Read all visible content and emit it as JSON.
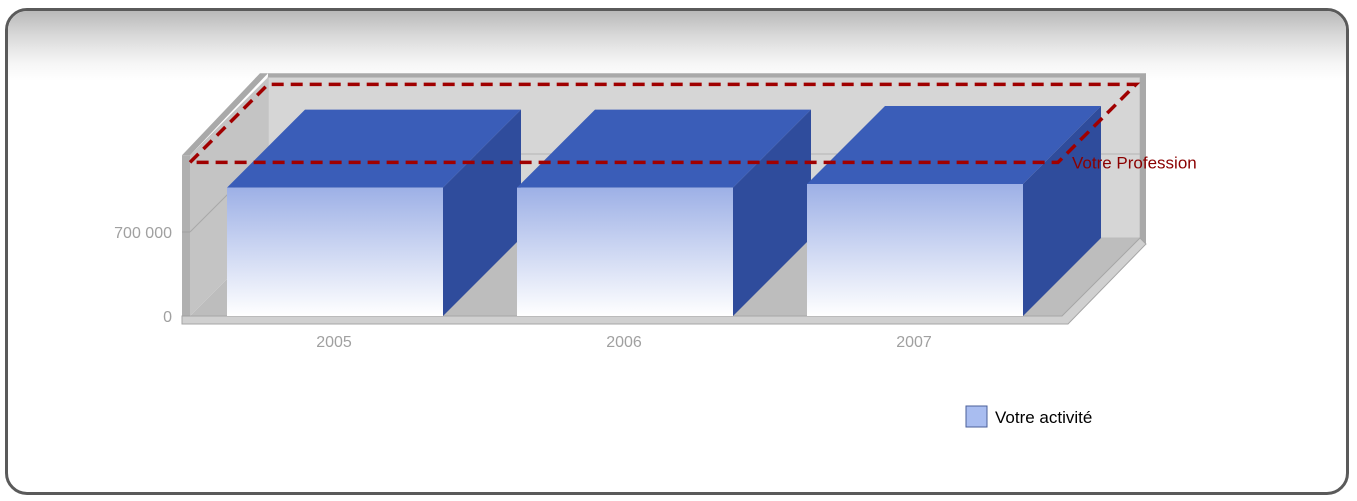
{
  "chart_data": {
    "type": "bar",
    "categories": [
      "2005",
      "2006",
      "2007"
    ],
    "series": [
      {
        "name": "Votre activité",
        "values": [
          1070000,
          1070000,
          1100000
        ]
      }
    ],
    "reference_line": {
      "name": "Votre Profession",
      "value": 1280000
    },
    "yticks": [
      {
        "value": 0,
        "label": "0"
      },
      {
        "value": 700000,
        "label": "700 000"
      }
    ],
    "ylim": [
      0,
      1340000
    ],
    "legend": "bottom-right",
    "three_d": true
  },
  "colors": {
    "bar_top": "#3a5db8",
    "bar_side": "#2f4c9c",
    "bar_front_top": "#9db0e6",
    "bar_front_bottom": "#ffffff",
    "reference_line": "#a00000",
    "wall": "#d6d6d6",
    "floor": "#bdbdbd",
    "legend_swatch": "#a9bdf0"
  }
}
